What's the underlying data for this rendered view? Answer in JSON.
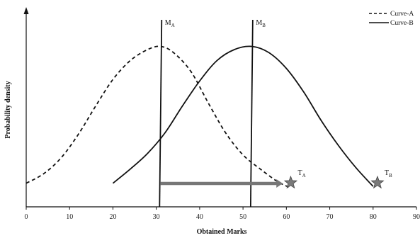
{
  "chart_data": {
    "type": "line",
    "title": "",
    "xlabel": "Obtained Marks",
    "ylabel": "Probability density",
    "xlim": [
      0,
      90
    ],
    "x_ticks": [
      "0",
      "10",
      "20",
      "30",
      "40",
      "50",
      "60",
      "70",
      "80",
      "90"
    ],
    "grid": false,
    "legend_position": "top-right",
    "series": [
      {
        "name": "Curve-A",
        "style": "dashed",
        "color": "#111111",
        "points": [
          [
            0,
            0.06
          ],
          [
            4,
            0.12
          ],
          [
            8,
            0.22
          ],
          [
            12,
            0.37
          ],
          [
            16,
            0.55
          ],
          [
            20,
            0.72
          ],
          [
            24,
            0.84
          ],
          [
            28,
            0.91
          ],
          [
            31,
            0.93
          ],
          [
            34,
            0.89
          ],
          [
            38,
            0.77
          ],
          [
            42,
            0.57
          ],
          [
            46,
            0.38
          ],
          [
            50,
            0.24
          ],
          [
            54,
            0.15
          ],
          [
            58,
            0.07
          ],
          [
            61,
            0.03
          ]
        ]
      },
      {
        "name": "Curve-B",
        "style": "solid",
        "color": "#111111",
        "points": [
          [
            20,
            0.06
          ],
          [
            24,
            0.15
          ],
          [
            28,
            0.25
          ],
          [
            32,
            0.38
          ],
          [
            36,
            0.55
          ],
          [
            40,
            0.71
          ],
          [
            44,
            0.84
          ],
          [
            48,
            0.91
          ],
          [
            52,
            0.93
          ],
          [
            56,
            0.89
          ],
          [
            60,
            0.79
          ],
          [
            64,
            0.64
          ],
          [
            68,
            0.46
          ],
          [
            72,
            0.3
          ],
          [
            76,
            0.16
          ],
          [
            80,
            0.04
          ]
        ]
      }
    ],
    "markers": [
      {
        "label_main": "M",
        "label_sub": "A",
        "x": 31
      },
      {
        "label_main": "M",
        "label_sub": "B",
        "x": 52
      }
    ],
    "targets": [
      {
        "label_main": "T",
        "label_sub": "A",
        "x": 61
      },
      {
        "label_main": "T",
        "label_sub": "B",
        "x": 81
      }
    ],
    "arrow": {
      "from": 31,
      "to": 59,
      "color": "#777777"
    },
    "star_color": "#7a7a7a"
  }
}
